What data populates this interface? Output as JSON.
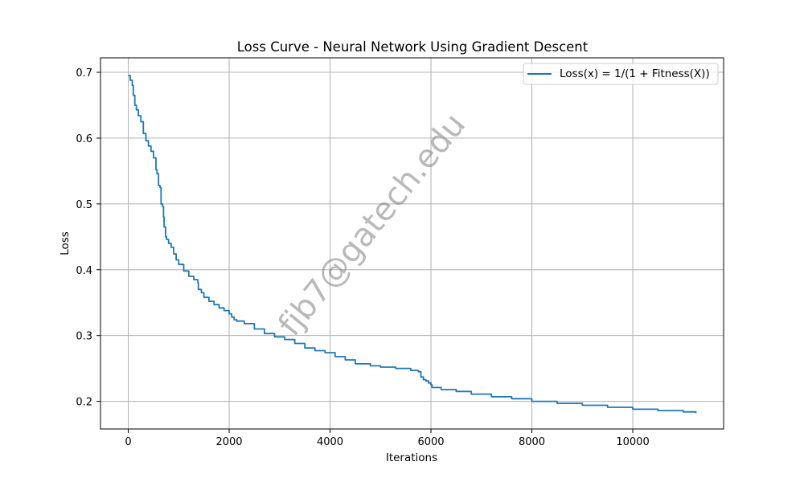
{
  "colors": {
    "series": "#1f77b4",
    "grid": "#b0b0b0",
    "axes": "#000000",
    "background": "#ffffff",
    "watermark": "#808080"
  },
  "watermark": "fjb7@gatech.edu",
  "chart_data": {
    "type": "line",
    "title": "Loss Curve - Neural Network Using Gradient Descent",
    "xlabel": "Iterations",
    "ylabel": "Loss",
    "xlim": [
      -550,
      11800
    ],
    "ylim": [
      0.158,
      0.722
    ],
    "xticks": [
      0,
      2000,
      4000,
      6000,
      8000,
      10000
    ],
    "xtick_labels": [
      "0",
      "2000",
      "4000",
      "6000",
      "8000",
      "10000"
    ],
    "yticks": [
      0.2,
      0.3,
      0.4,
      0.5,
      0.6,
      0.7
    ],
    "ytick_labels": [
      "0.2",
      "0.3",
      "0.4",
      "0.5",
      "0.6",
      "0.7"
    ],
    "grid": true,
    "legend_position": "upper right",
    "series": [
      {
        "name": "Loss(x) = 1/(1 + Fitness(X))",
        "x": [
          0,
          40,
          80,
          100,
          130,
          160,
          200,
          250,
          300,
          350,
          400,
          450,
          500,
          550,
          570,
          600,
          630,
          650,
          680,
          700,
          710,
          740,
          760,
          800,
          850,
          900,
          950,
          1000,
          1100,
          1200,
          1300,
          1380,
          1390,
          1450,
          1500,
          1600,
          1700,
          1800,
          1900,
          2000,
          2050,
          2100,
          2150,
          2300,
          2500,
          2700,
          2900,
          3100,
          3300,
          3500,
          3700,
          3900,
          4100,
          4300,
          4500,
          4800,
          5000,
          5300,
          5600,
          5750,
          5800,
          5850,
          5900,
          5950,
          6000,
          6020,
          6200,
          6500,
          6800,
          7200,
          7600,
          8000,
          8500,
          9000,
          9500,
          10000,
          10500,
          11000,
          11250
        ],
        "y": [
          0.695,
          0.688,
          0.68,
          0.665,
          0.65,
          0.643,
          0.634,
          0.625,
          0.607,
          0.596,
          0.588,
          0.58,
          0.57,
          0.552,
          0.546,
          0.528,
          0.525,
          0.5,
          0.496,
          0.48,
          0.465,
          0.45,
          0.446,
          0.44,
          0.434,
          0.424,
          0.415,
          0.408,
          0.398,
          0.39,
          0.385,
          0.38,
          0.37,
          0.365,
          0.358,
          0.352,
          0.347,
          0.342,
          0.338,
          0.333,
          0.328,
          0.324,
          0.322,
          0.318,
          0.31,
          0.303,
          0.298,
          0.294,
          0.288,
          0.281,
          0.277,
          0.274,
          0.268,
          0.263,
          0.257,
          0.254,
          0.252,
          0.25,
          0.247,
          0.245,
          0.237,
          0.233,
          0.231,
          0.228,
          0.225,
          0.221,
          0.218,
          0.215,
          0.211,
          0.207,
          0.204,
          0.2,
          0.197,
          0.194,
          0.191,
          0.188,
          0.186,
          0.184,
          0.182
        ]
      }
    ]
  }
}
